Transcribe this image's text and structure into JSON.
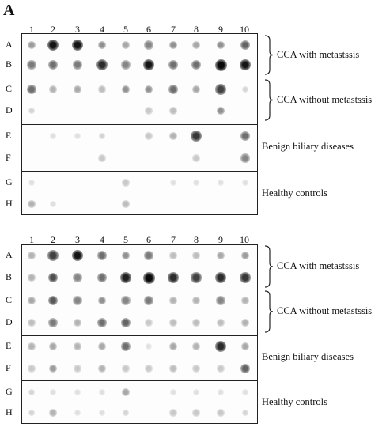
{
  "panel_label": "A",
  "columns": [
    "1",
    "2",
    "3",
    "4",
    "5",
    "6",
    "7",
    "8",
    "9",
    "10"
  ],
  "rows": [
    "A",
    "B",
    "C",
    "D",
    "E",
    "F",
    "G",
    "H"
  ],
  "groups": [
    {
      "label": "CCA with metastssis",
      "rows": [
        "A",
        "B"
      ]
    },
    {
      "label": "CCA without metastssis",
      "rows": [
        "C",
        "D"
      ]
    },
    {
      "label": "Benign biliary diseases",
      "rows": [
        "E",
        "F"
      ]
    },
    {
      "label": "Healthy controls",
      "rows": [
        "G",
        "H"
      ]
    }
  ],
  "blots": [
    {
      "name": "top-blot",
      "intensity": [
        [
          0.35,
          0.95,
          0.95,
          0.4,
          0.3,
          0.45,
          0.4,
          0.3,
          0.4,
          0.6
        ],
        [
          0.5,
          0.55,
          0.5,
          0.85,
          0.45,
          0.95,
          0.55,
          0.55,
          1.0,
          0.95
        ],
        [
          0.55,
          0.25,
          0.3,
          0.2,
          0.4,
          0.4,
          0.55,
          0.3,
          0.75,
          0.1
        ],
        [
          0.1,
          0.0,
          0.0,
          0.0,
          0.0,
          0.15,
          0.2,
          0.0,
          0.4,
          0.0
        ],
        [
          0.0,
          0.05,
          0.05,
          0.1,
          0.0,
          0.15,
          0.25,
          0.8,
          0.0,
          0.55
        ],
        [
          0.0,
          0.0,
          0.0,
          0.15,
          0.0,
          0.0,
          0.0,
          0.15,
          0.0,
          0.45
        ],
        [
          0.05,
          0.0,
          0.0,
          0.0,
          0.15,
          0.0,
          0.05,
          0.05,
          0.05,
          0.05
        ],
        [
          0.25,
          0.05,
          0.0,
          0.0,
          0.2,
          0.0,
          0.0,
          0.0,
          0.0,
          0.0
        ]
      ]
    },
    {
      "name": "bottom-blot",
      "intensity": [
        [
          0.25,
          0.75,
          0.95,
          0.55,
          0.4,
          0.5,
          0.2,
          0.2,
          0.3,
          0.35
        ],
        [
          0.25,
          0.7,
          0.45,
          0.55,
          0.9,
          1.0,
          0.85,
          0.75,
          0.85,
          0.8
        ],
        [
          0.3,
          0.65,
          0.45,
          0.4,
          0.45,
          0.5,
          0.25,
          0.25,
          0.45,
          0.25
        ],
        [
          0.2,
          0.5,
          0.25,
          0.55,
          0.6,
          0.15,
          0.2,
          0.2,
          0.2,
          0.25
        ],
        [
          0.25,
          0.3,
          0.25,
          0.3,
          0.55,
          0.05,
          0.3,
          0.25,
          0.85,
          0.3
        ],
        [
          0.15,
          0.35,
          0.15,
          0.25,
          0.15,
          0.15,
          0.2,
          0.15,
          0.15,
          0.6
        ],
        [
          0.1,
          0.05,
          0.05,
          0.05,
          0.3,
          0.0,
          0.05,
          0.05,
          0.05,
          0.05
        ],
        [
          0.1,
          0.25,
          0.05,
          0.05,
          0.1,
          0.0,
          0.15,
          0.15,
          0.15,
          0.1
        ]
      ]
    }
  ]
}
